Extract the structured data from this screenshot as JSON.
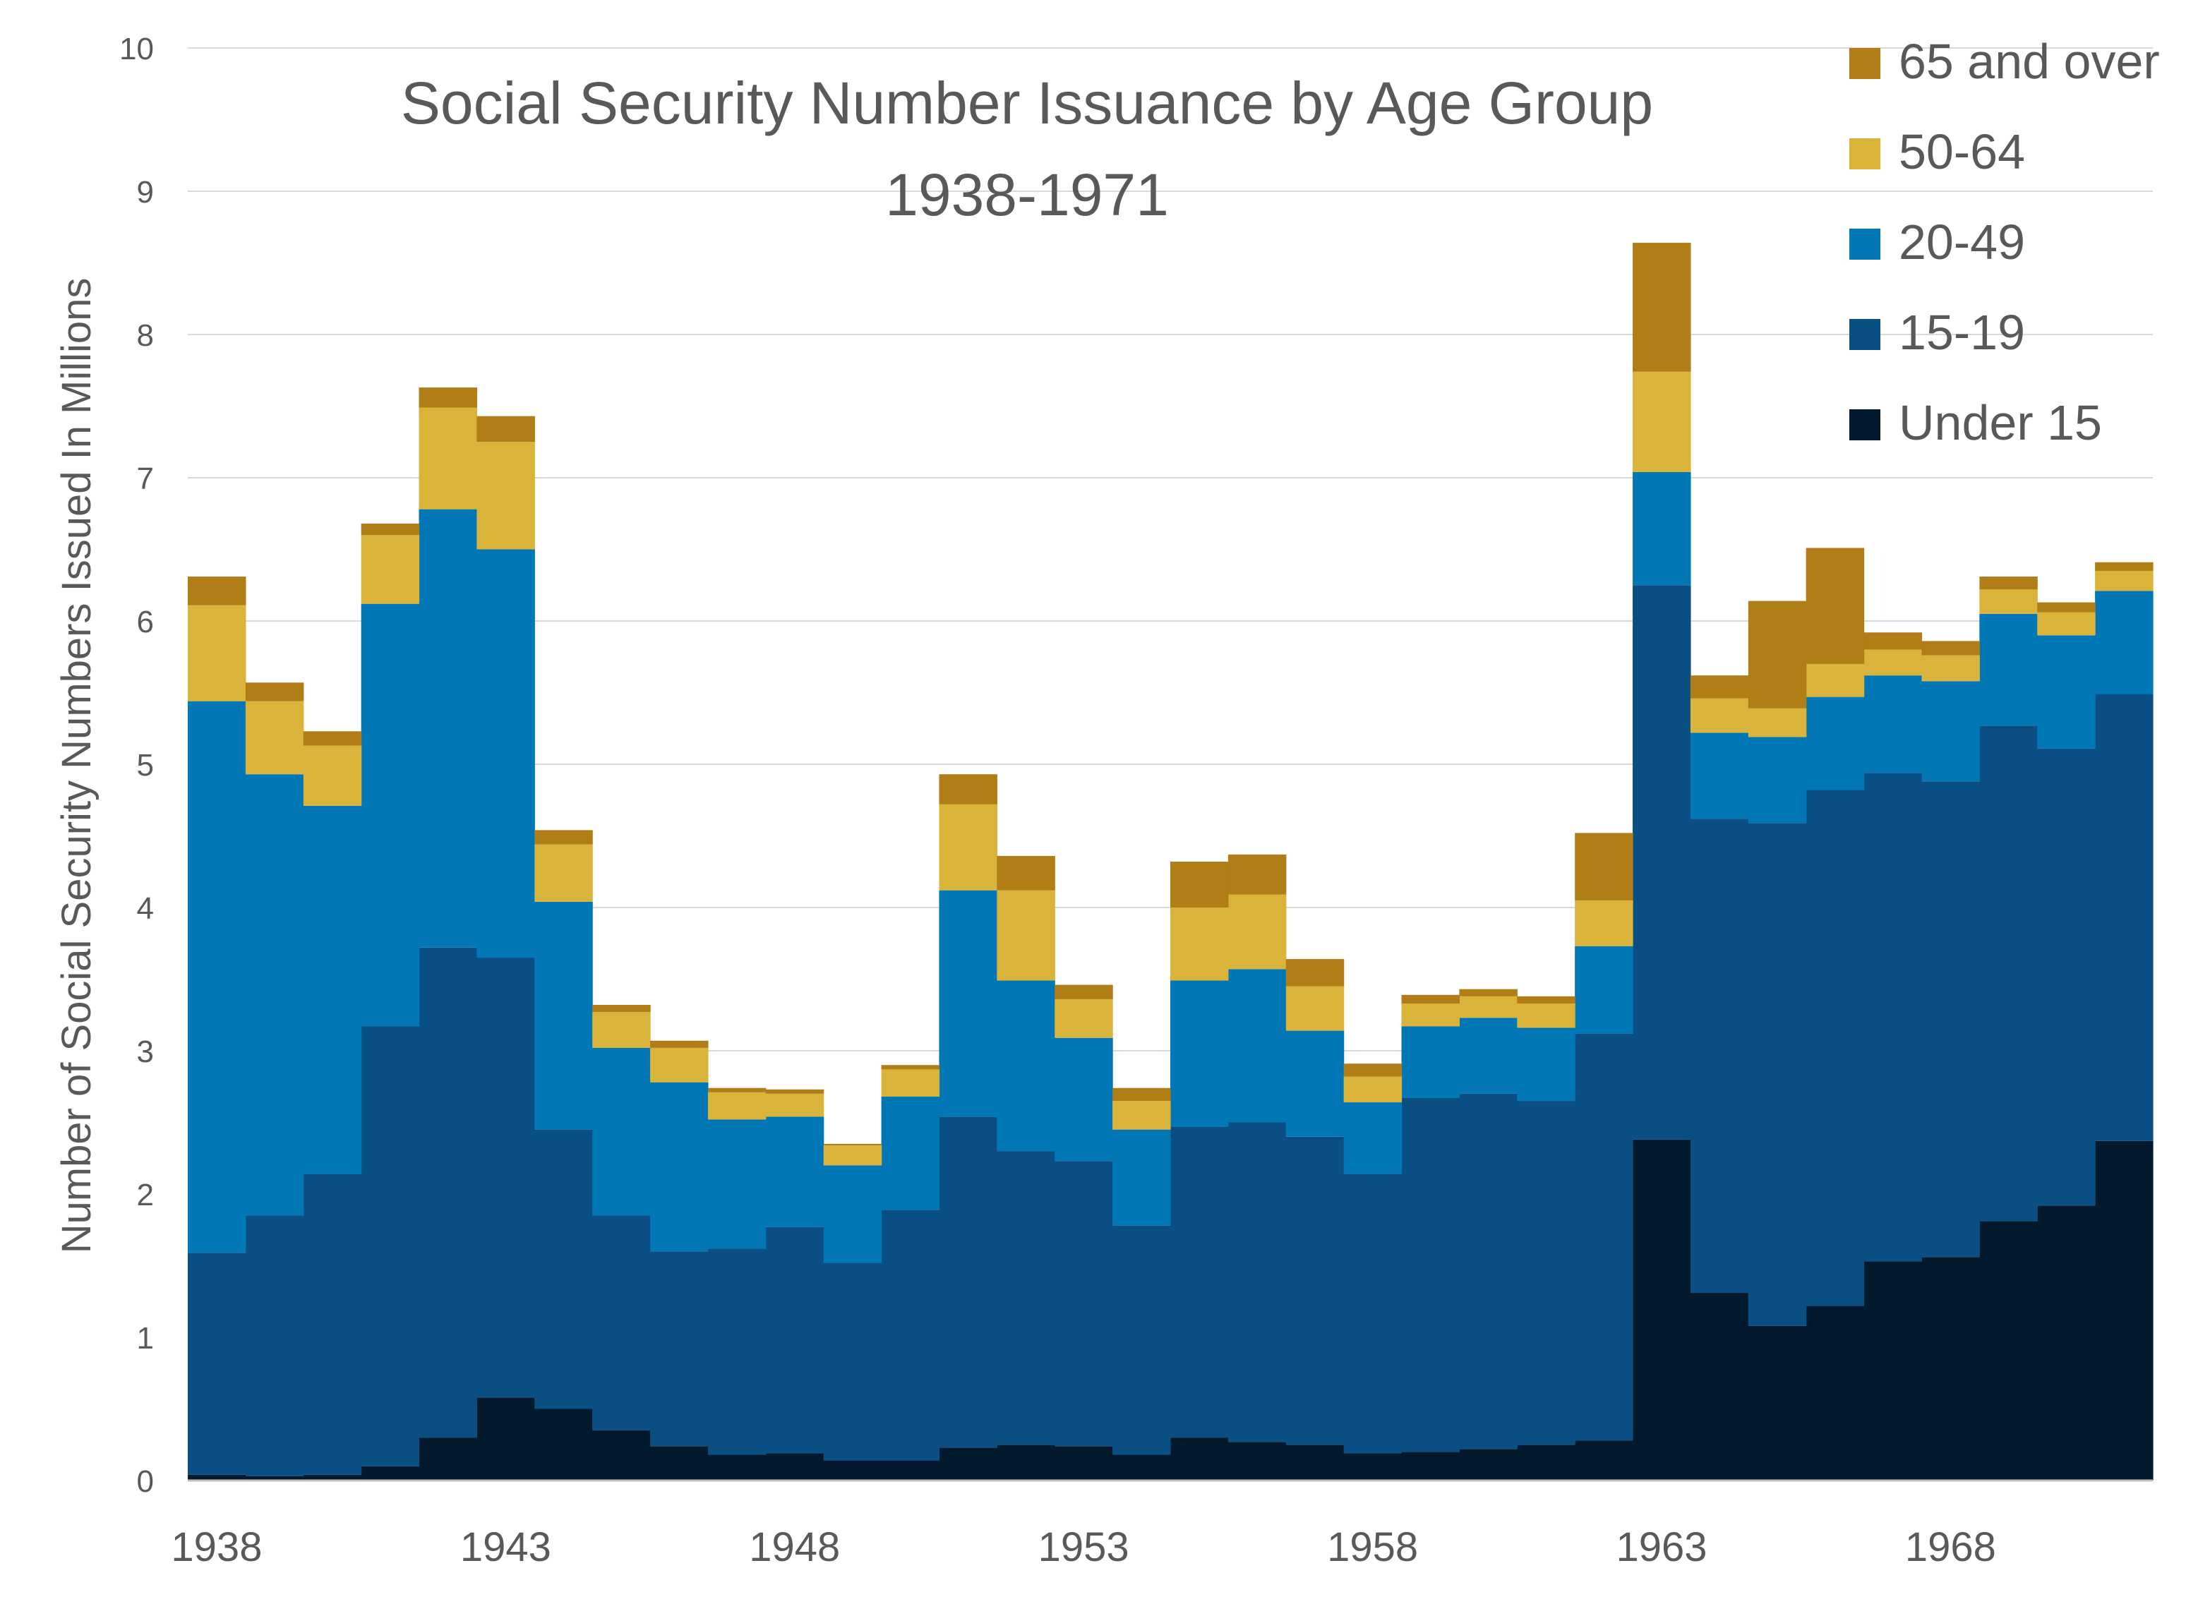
{
  "chart_data": {
    "type": "bar",
    "stacked": true,
    "title": "Social Security Number Issuance by Age Group",
    "subtitle": "1938-1971",
    "ylabel": "Number of Social Security Numbers Issued In Millions",
    "xlabel": "",
    "ylim": [
      0,
      10
    ],
    "yticks": [
      "0",
      "1",
      "2",
      "3",
      "4",
      "5",
      "6",
      "7",
      "8",
      "9",
      "10"
    ],
    "xtick_labels": [
      "1938",
      "1943",
      "1948",
      "1953",
      "1958",
      "1963",
      "1968"
    ],
    "grid": "horizontal",
    "legend_position": "top-right",
    "categories": [
      1938,
      1939,
      1940,
      1941,
      1942,
      1943,
      1944,
      1945,
      1946,
      1947,
      1948,
      1949,
      1950,
      1951,
      1952,
      1953,
      1954,
      1955,
      1956,
      1957,
      1958,
      1959,
      1960,
      1961,
      1962,
      1963,
      1964,
      1965,
      1966,
      1967,
      1968,
      1969,
      1970,
      1971
    ],
    "series": [
      {
        "name": "Under 15",
        "color": "#031a2e",
        "values": [
          0.04,
          0.03,
          0.04,
          0.1,
          0.3,
          0.58,
          0.5,
          0.35,
          0.24,
          0.18,
          0.19,
          0.14,
          0.14,
          0.23,
          0.25,
          0.24,
          0.18,
          0.3,
          0.27,
          0.25,
          0.19,
          0.2,
          0.22,
          0.25,
          0.28,
          2.38,
          1.31,
          1.08,
          1.22,
          1.53,
          1.56,
          1.81,
          1.92,
          2.37
        ]
      },
      {
        "name": "15-19",
        "color": "#0a4f84",
        "values": [
          1.55,
          1.82,
          2.1,
          3.07,
          3.42,
          3.07,
          1.95,
          1.5,
          1.36,
          1.44,
          1.58,
          1.38,
          1.75,
          2.31,
          2.05,
          1.99,
          1.6,
          2.17,
          2.23,
          2.15,
          1.95,
          2.47,
          2.48,
          2.4,
          2.84,
          3.87,
          3.31,
          3.51,
          3.6,
          3.41,
          3.32,
          3.46,
          3.19,
          3.12
        ]
      },
      {
        "name": "20-49",
        "color": "#0277b6",
        "values": [
          3.85,
          3.08,
          2.57,
          2.95,
          3.06,
          2.85,
          1.59,
          1.17,
          1.18,
          0.9,
          0.77,
          0.68,
          0.79,
          1.58,
          1.19,
          0.86,
          0.67,
          1.02,
          1.07,
          0.74,
          0.5,
          0.5,
          0.53,
          0.51,
          0.61,
          0.79,
          0.6,
          0.6,
          0.65,
          0.68,
          0.7,
          0.78,
          0.79,
          0.72
        ]
      },
      {
        "name": "50-64",
        "color": "#dab33a",
        "values": [
          0.67,
          0.51,
          0.42,
          0.48,
          0.71,
          0.75,
          0.4,
          0.25,
          0.24,
          0.19,
          0.16,
          0.14,
          0.19,
          0.6,
          0.63,
          0.27,
          0.2,
          0.51,
          0.52,
          0.31,
          0.18,
          0.16,
          0.15,
          0.17,
          0.32,
          0.7,
          0.24,
          0.2,
          0.23,
          0.18,
          0.18,
          0.17,
          0.16,
          0.14
        ]
      },
      {
        "name": "65 and over",
        "color": "#b07d16",
        "values": [
          0.2,
          0.13,
          0.1,
          0.08,
          0.14,
          0.18,
          0.1,
          0.05,
          0.05,
          0.03,
          0.03,
          0.01,
          0.03,
          0.21,
          0.24,
          0.1,
          0.09,
          0.32,
          0.28,
          0.19,
          0.09,
          0.06,
          0.05,
          0.05,
          0.47,
          0.9,
          0.16,
          0.75,
          0.81,
          0.12,
          0.1,
          0.09,
          0.07,
          0.06
        ]
      }
    ]
  }
}
